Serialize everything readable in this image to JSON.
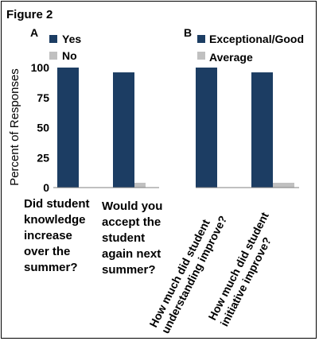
{
  "figure_title": "Figure 2",
  "colors": {
    "series1": "#1c3d63",
    "series2": "#c0c0c0",
    "axis": "#808080"
  },
  "chart_data": [
    {
      "panel": "A",
      "type": "bar",
      "ylabel": "Percent of Responses",
      "ylim": [
        0,
        100
      ],
      "yticks": [
        0,
        25,
        50,
        75,
        100
      ],
      "categories": [
        [
          "Did student",
          "knowledge",
          "increase",
          "over the",
          "summer?"
        ],
        [
          "Would you",
          "accept the",
          "student",
          "again next",
          "summer?"
        ]
      ],
      "series": [
        {
          "name": "Yes",
          "values": [
            100,
            96
          ]
        },
        {
          "name": "No",
          "values": [
            0,
            4
          ]
        }
      ],
      "legend_position": "top-left"
    },
    {
      "panel": "B",
      "type": "bar",
      "ylim": [
        0,
        100
      ],
      "categories": [
        [
          "How much did student",
          "understanding improve?"
        ],
        [
          "How much did student",
          "initiative improve?"
        ]
      ],
      "series": [
        {
          "name": "Exceptional/Good",
          "values": [
            100,
            96
          ]
        },
        {
          "name": "Average",
          "values": [
            0,
            4
          ]
        }
      ],
      "legend_position": "top-left"
    }
  ]
}
